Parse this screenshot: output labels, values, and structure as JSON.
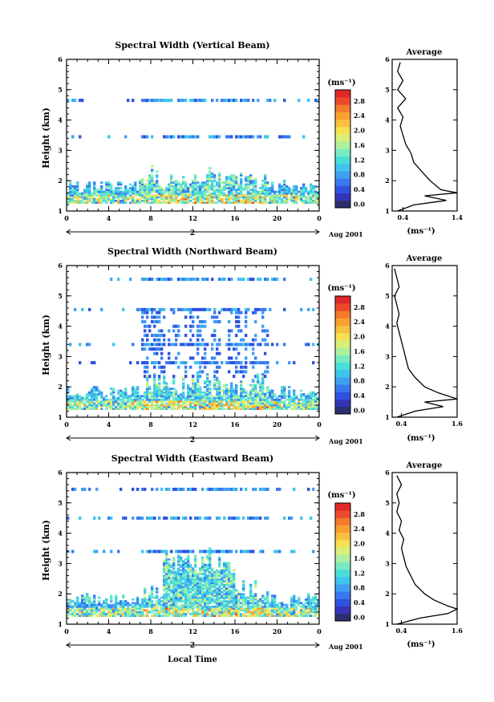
{
  "panels": [
    {
      "title": "Spectral Width (Vertical Beam)",
      "avg_title": "Average",
      "avg_xlabel": "(ms⁻¹)",
      "avg_xticks": [
        "0.4",
        "1.4"
      ],
      "date_label": "Aug 2001",
      "day_label": "2"
    },
    {
      "title": "Spectral Width (Northward Beam)",
      "avg_title": "Average",
      "avg_xlabel": "(ms⁻¹)",
      "avg_xticks": [
        "0.4",
        "1.6"
      ],
      "date_label": "Aug 2001",
      "day_label": "2"
    },
    {
      "title": "Spectral Width (Eastward Beam)",
      "avg_title": "Average",
      "avg_xlabel": "(ms⁻¹)",
      "avg_xticks": [
        "0.4",
        "1.6"
      ],
      "date_label": "Aug 2001",
      "day_label": "2"
    }
  ],
  "ylabel": "Height (km)",
  "xlabel": "Local Time",
  "colorbar_unit": "(ms⁻¹)",
  "colorbar_ticks": [
    "0.0",
    "0.4",
    "0.8",
    "1.2",
    "1.6",
    "2.0",
    "2.4",
    "2.8"
  ],
  "colors": [
    "#2b2f6e",
    "#3535b8",
    "#2f52e0",
    "#3a78f0",
    "#3fa0f2",
    "#3fc4ef",
    "#4ae0d8",
    "#7ceac0",
    "#aef0a0",
    "#d8f07a",
    "#f4e050",
    "#f8c040",
    "#f8a030",
    "#f47a2c",
    "#ec4a2c",
    "#e02828"
  ],
  "chart_data": [
    {
      "type": "heatmap",
      "title": "Spectral Width (Vertical Beam)",
      "xlabel": "",
      "ylabel": "Height (km)",
      "x_ticks": [
        "0",
        "4",
        "8",
        "12",
        "16",
        "20",
        "0"
      ],
      "y_ticks": [
        "1",
        "2",
        "3",
        "4",
        "5",
        "6"
      ],
      "xlim": [
        0,
        24
      ],
      "ylim": [
        1,
        6
      ],
      "colorbar": {
        "label": "(ms⁻¹)",
        "range": [
          0.0,
          3.0
        ]
      },
      "average_profile": {
        "xlim": [
          0.2,
          1.4
        ],
        "x_ticks": [
          "0.4",
          "1.4"
        ],
        "height_km": [
          1.0,
          1.2,
          1.35,
          1.5,
          1.6,
          1.7,
          2.0,
          2.3,
          2.6,
          2.9,
          3.2,
          3.5,
          3.8,
          4.1,
          4.4,
          4.7,
          5.0,
          5.3,
          5.6,
          5.9
        ],
        "width_ms": [
          0.3,
          0.6,
          1.2,
          0.8,
          1.4,
          1.1,
          0.9,
          0.75,
          0.6,
          0.55,
          0.45,
          0.4,
          0.35,
          0.4,
          0.3,
          0.45,
          0.3,
          0.4,
          0.3,
          0.35
        ]
      }
    },
    {
      "type": "heatmap",
      "title": "Spectral Width (Northward Beam)",
      "xlabel": "",
      "ylabel": "Height (km)",
      "x_ticks": [
        "0",
        "4",
        "8",
        "12",
        "16",
        "20",
        "0"
      ],
      "y_ticks": [
        "1",
        "2",
        "3",
        "4",
        "5",
        "6"
      ],
      "xlim": [
        0,
        24
      ],
      "ylim": [
        1,
        6
      ],
      "colorbar": {
        "label": "(ms⁻¹)",
        "range": [
          0.0,
          3.0
        ]
      },
      "average_profile": {
        "xlim": [
          0.2,
          1.6
        ],
        "x_ticks": [
          "0.4",
          "1.6"
        ],
        "height_km": [
          1.0,
          1.2,
          1.35,
          1.5,
          1.6,
          1.8,
          2.0,
          2.3,
          2.6,
          2.9,
          3.2,
          3.5,
          3.8,
          4.1,
          4.4,
          4.7,
          5.0,
          5.3,
          5.6,
          5.9
        ],
        "width_ms": [
          0.3,
          0.7,
          1.3,
          0.9,
          1.6,
          1.2,
          0.9,
          0.7,
          0.55,
          0.5,
          0.45,
          0.4,
          0.35,
          0.3,
          0.35,
          0.3,
          0.25,
          0.35,
          0.3,
          0.25
        ]
      }
    },
    {
      "type": "heatmap",
      "title": "Spectral Width (Eastward Beam)",
      "xlabel": "Local Time",
      "ylabel": "Height (km)",
      "x_ticks": [
        "0",
        "4",
        "8",
        "12",
        "16",
        "20",
        "0"
      ],
      "y_ticks": [
        "1",
        "2",
        "3",
        "4",
        "5",
        "6"
      ],
      "xlim": [
        0,
        24
      ],
      "ylim": [
        1,
        6
      ],
      "colorbar": {
        "label": "(ms⁻¹)",
        "range": [
          0.0,
          3.0
        ]
      },
      "average_profile": {
        "xlim": [
          0.2,
          1.6
        ],
        "x_ticks": [
          "0.4",
          "1.6"
        ],
        "height_km": [
          1.0,
          1.2,
          1.35,
          1.5,
          1.6,
          1.8,
          2.0,
          2.3,
          2.6,
          2.9,
          3.2,
          3.5,
          3.8,
          4.1,
          4.4,
          4.7,
          5.0,
          5.3,
          5.6,
          5.9
        ],
        "width_ms": [
          0.3,
          0.8,
          1.4,
          1.6,
          1.4,
          1.1,
          0.9,
          0.7,
          0.6,
          0.5,
          0.45,
          0.4,
          0.45,
          0.35,
          0.4,
          0.3,
          0.35,
          0.3,
          0.4,
          0.3
        ]
      }
    }
  ]
}
